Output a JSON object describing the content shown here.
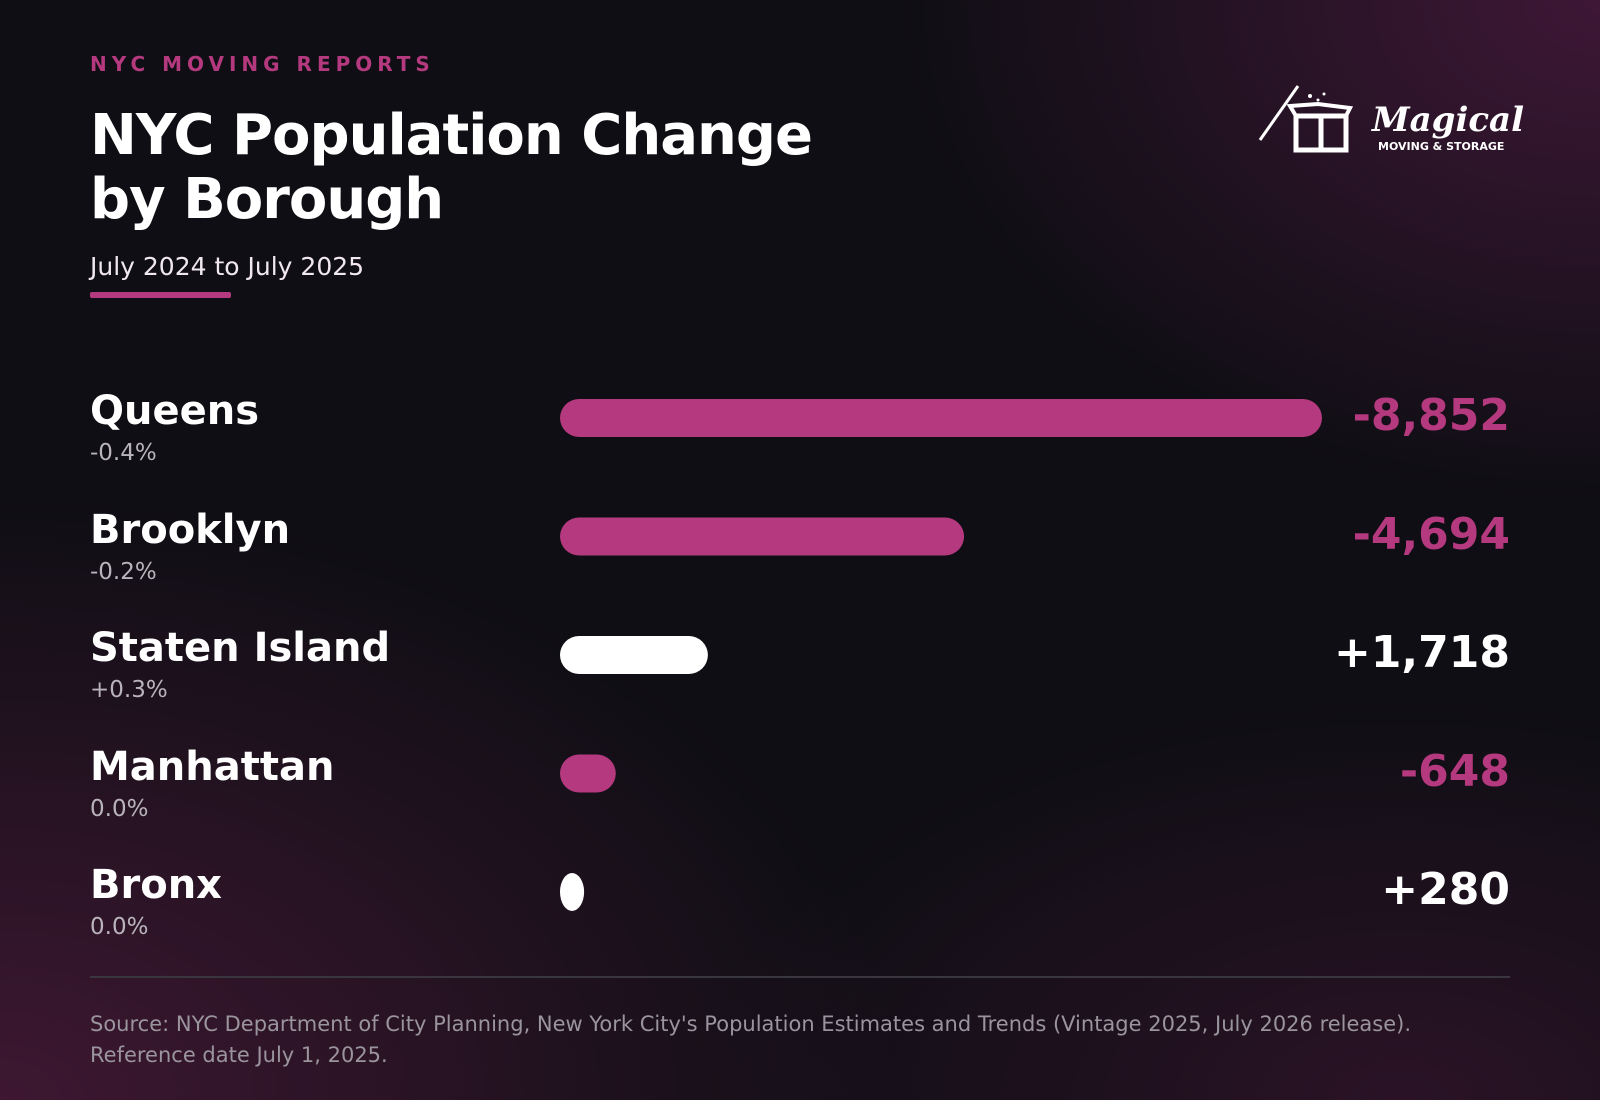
{
  "chart_data": {
    "type": "bar",
    "eyebrow": "NYC MOVING REPORTS",
    "title": "NYC Population Change by Borough",
    "subtitle": "July 2024 to July 2025",
    "brand": {
      "name": "Magical",
      "tagline": "MOVING & STORAGE"
    },
    "categories": [
      "Queens",
      "Brooklyn",
      "Staten Island",
      "Manhattan",
      "Bronx"
    ],
    "percent_labels": [
      "-0.4%",
      "-0.2%",
      "+0.3%",
      "0.0%",
      "0.0%"
    ],
    "values": [
      -8852,
      -4694,
      1718,
      -648,
      280
    ],
    "value_labels": [
      "-8,852",
      "-4,694",
      "+1,718",
      "-648",
      "+280"
    ],
    "colors": {
      "negative": "#b5397e",
      "positive": "#ffffff"
    },
    "source": [
      "Source: NYC Department of City Planning, New York City's Population Estimates and Trends (Vintage 2025, July 2026 release).",
      "Reference date July 1, 2025."
    ]
  }
}
